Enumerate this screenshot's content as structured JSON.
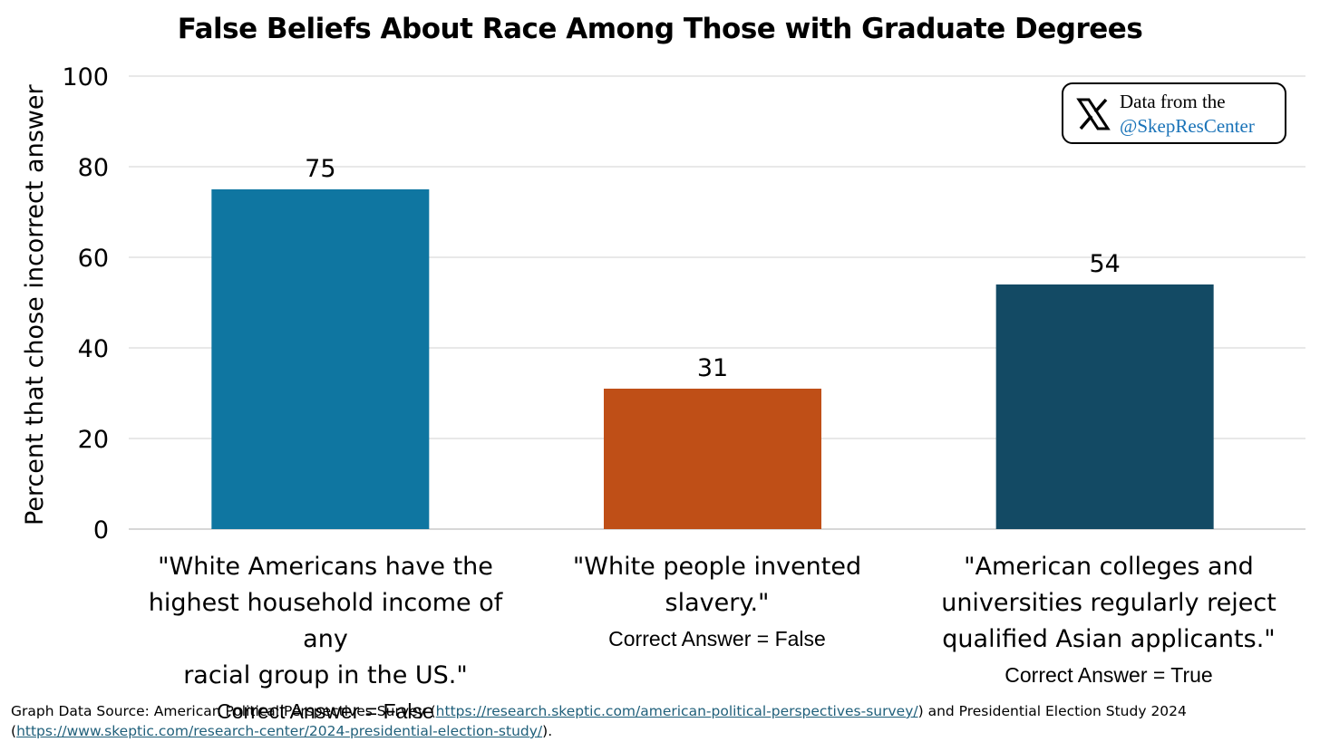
{
  "chart_data": {
    "type": "bar",
    "title": "False Beliefs About Race Among Those with Graduate Degrees",
    "ylabel": "Percent that chose incorrect answer",
    "ylim": [
      0,
      100
    ],
    "yticks": [
      0,
      20,
      40,
      60,
      80,
      100
    ],
    "ytick_labels": [
      "0",
      "20",
      "40",
      "60",
      "80",
      "100"
    ],
    "grid": true,
    "categories": [
      "\"White Americans have the highest household income of any racial group in the US.\"",
      "\"White people invented slavery.\"",
      "\"American colleges and universities regularly reject qualified Asian applicants.\""
    ],
    "values": [
      75,
      31,
      54
    ],
    "data_labels": [
      "75",
      "31",
      "54"
    ],
    "bar_colors": [
      "#0f76a1",
      "#bf4f17",
      "#134a64"
    ]
  },
  "category_labels": [
    {
      "lines": [
        "\"White Americans have the",
        "highest household income of any",
        "racial group in the US.\""
      ],
      "answer": "Correct Answer = False"
    },
    {
      "lines": [
        "\"White people invented slavery.\""
      ],
      "answer": "Correct Answer = False"
    },
    {
      "lines": [
        "\"American colleges and",
        "universities regularly reject",
        "qualified Asian applicants.\""
      ],
      "answer": "Correct Answer = True"
    }
  ],
  "badge": {
    "icon": "x-logo-icon",
    "line1": "Data from the",
    "line2": "@SkepResCenter"
  },
  "source": {
    "prefix": "Graph Data Source: American Political Perspectives Survey (",
    "link1": "https://research.skeptic.com/american-political-perspectives-survey/",
    "middle": ") and Presidential Election Study 2024",
    "open2": "(",
    "link2": "https://www.skeptic.com/research-center/2024-presidential-election-study/",
    "suffix": ")."
  },
  "colors": {
    "grid": "#d9d9d9",
    "axis": "#bfbfbf",
    "link": "#1f5f7a",
    "handle": "#1a73b8"
  }
}
